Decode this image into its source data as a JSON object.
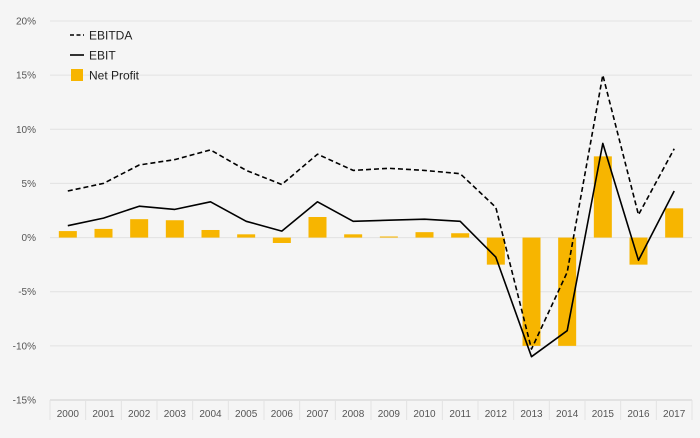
{
  "chart_data": {
    "type": "bar",
    "categories": [
      "2000",
      "2001",
      "2002",
      "2003",
      "2004",
      "2005",
      "2006",
      "2007",
      "2008",
      "2009",
      "2010",
      "2011",
      "2012",
      "2013",
      "2014",
      "2015",
      "2016",
      "2017"
    ],
    "y_ticks": [
      "20%",
      "15%",
      "10%",
      "5%",
      "0%",
      "-5%",
      "-10%",
      "-15%"
    ],
    "y_tick_values": [
      20,
      15,
      10,
      5,
      0,
      -5,
      -10,
      -15
    ],
    "ylim": [
      -15,
      20
    ],
    "grid": true,
    "legend_position": "top-left",
    "series": [
      {
        "name": "EBITDA",
        "type": "line",
        "style": "dashed",
        "color": "#000000",
        "values": [
          4.3,
          5.0,
          6.7,
          7.2,
          8.1,
          6.2,
          4.9,
          7.7,
          6.2,
          6.4,
          6.2,
          5.9,
          2.8,
          -10.3,
          -3.2,
          15.0,
          2.1,
          8.2
        ]
      },
      {
        "name": "EBIT",
        "type": "line",
        "style": "solid",
        "color": "#000000",
        "values": [
          1.1,
          1.8,
          2.9,
          2.6,
          3.3,
          1.5,
          0.6,
          3.3,
          1.5,
          1.6,
          1.7,
          1.5,
          -1.8,
          -11.0,
          -8.6,
          8.7,
          -2.1,
          4.3
        ]
      },
      {
        "name": "Net Profit",
        "type": "bar",
        "color": "#f7b500",
        "values": [
          0.6,
          0.8,
          1.7,
          1.6,
          0.7,
          0.3,
          -0.5,
          1.9,
          0.3,
          0.1,
          0.5,
          0.4,
          -2.5,
          -10.0,
          -10.0,
          7.5,
          -2.5,
          2.7
        ]
      }
    ]
  }
}
